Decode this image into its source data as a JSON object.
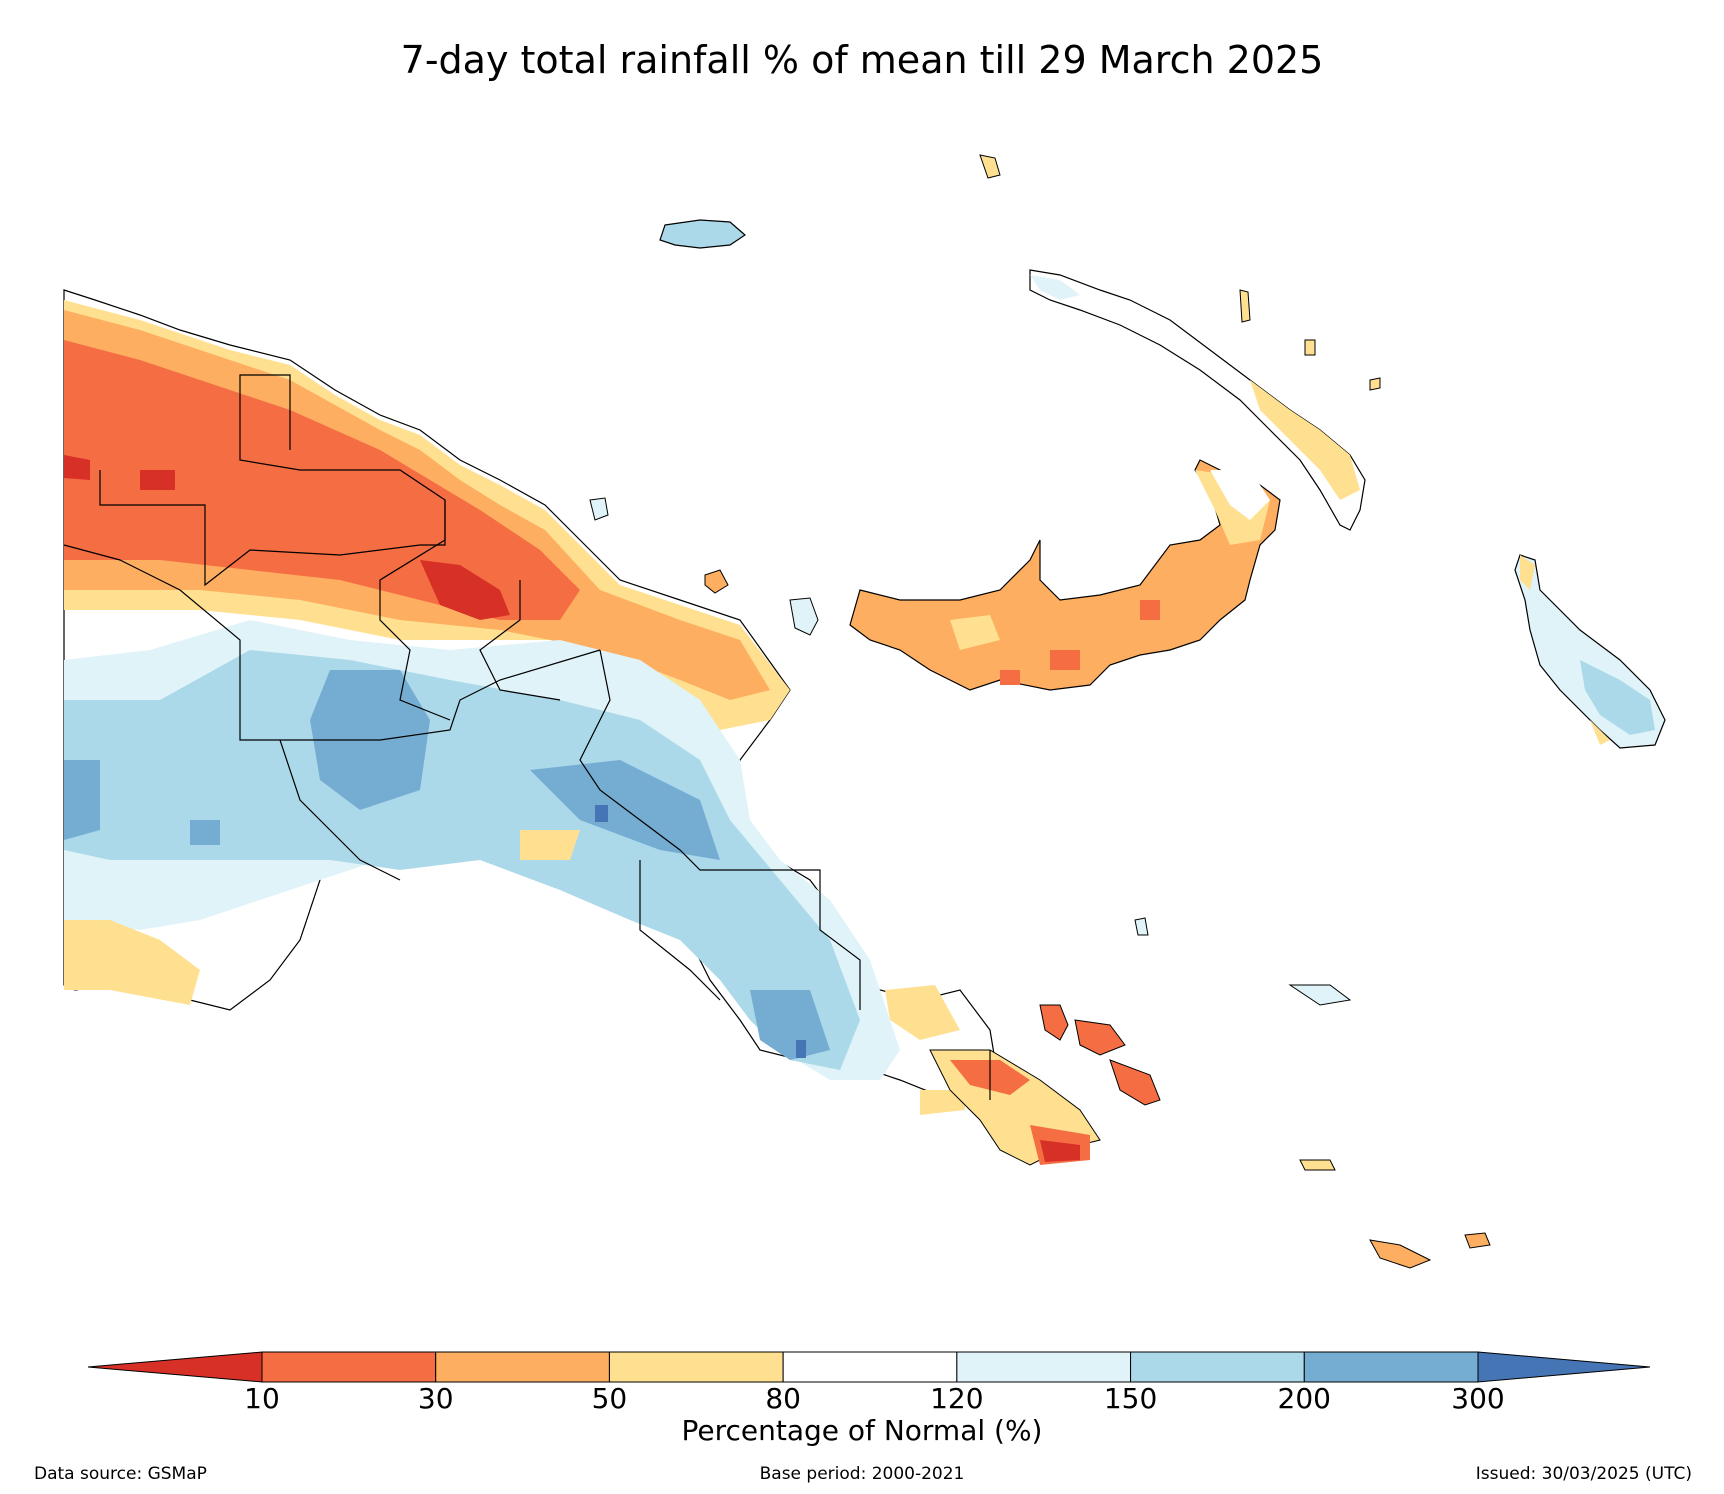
{
  "title": "7-day total rainfall % of mean till 29 March 2025",
  "legend": {
    "label": "Percentage of Normal (%)",
    "ticks": [
      "10",
      "30",
      "50",
      "80",
      "120",
      "150",
      "200",
      "300"
    ],
    "bins": [
      {
        "range": "<10",
        "color": "#d73027"
      },
      {
        "range": "10-30",
        "color": "#f46d43"
      },
      {
        "range": "30-50",
        "color": "#fdae61"
      },
      {
        "range": "50-80",
        "color": "#fee090"
      },
      {
        "range": "80-120",
        "color": "#ffffff"
      },
      {
        "range": "120-150",
        "color": "#e0f3f8"
      },
      {
        "range": "150-200",
        "color": "#abd9e9"
      },
      {
        "range": "200-300",
        "color": "#74add1"
      },
      {
        "range": ">300",
        "color": "#4575b4"
      }
    ]
  },
  "footer": {
    "source": "Data source: GSMaP",
    "base_period": "Base period: 2000-2021",
    "issued": "Issued: 30/03/2025 (UTC)"
  }
}
